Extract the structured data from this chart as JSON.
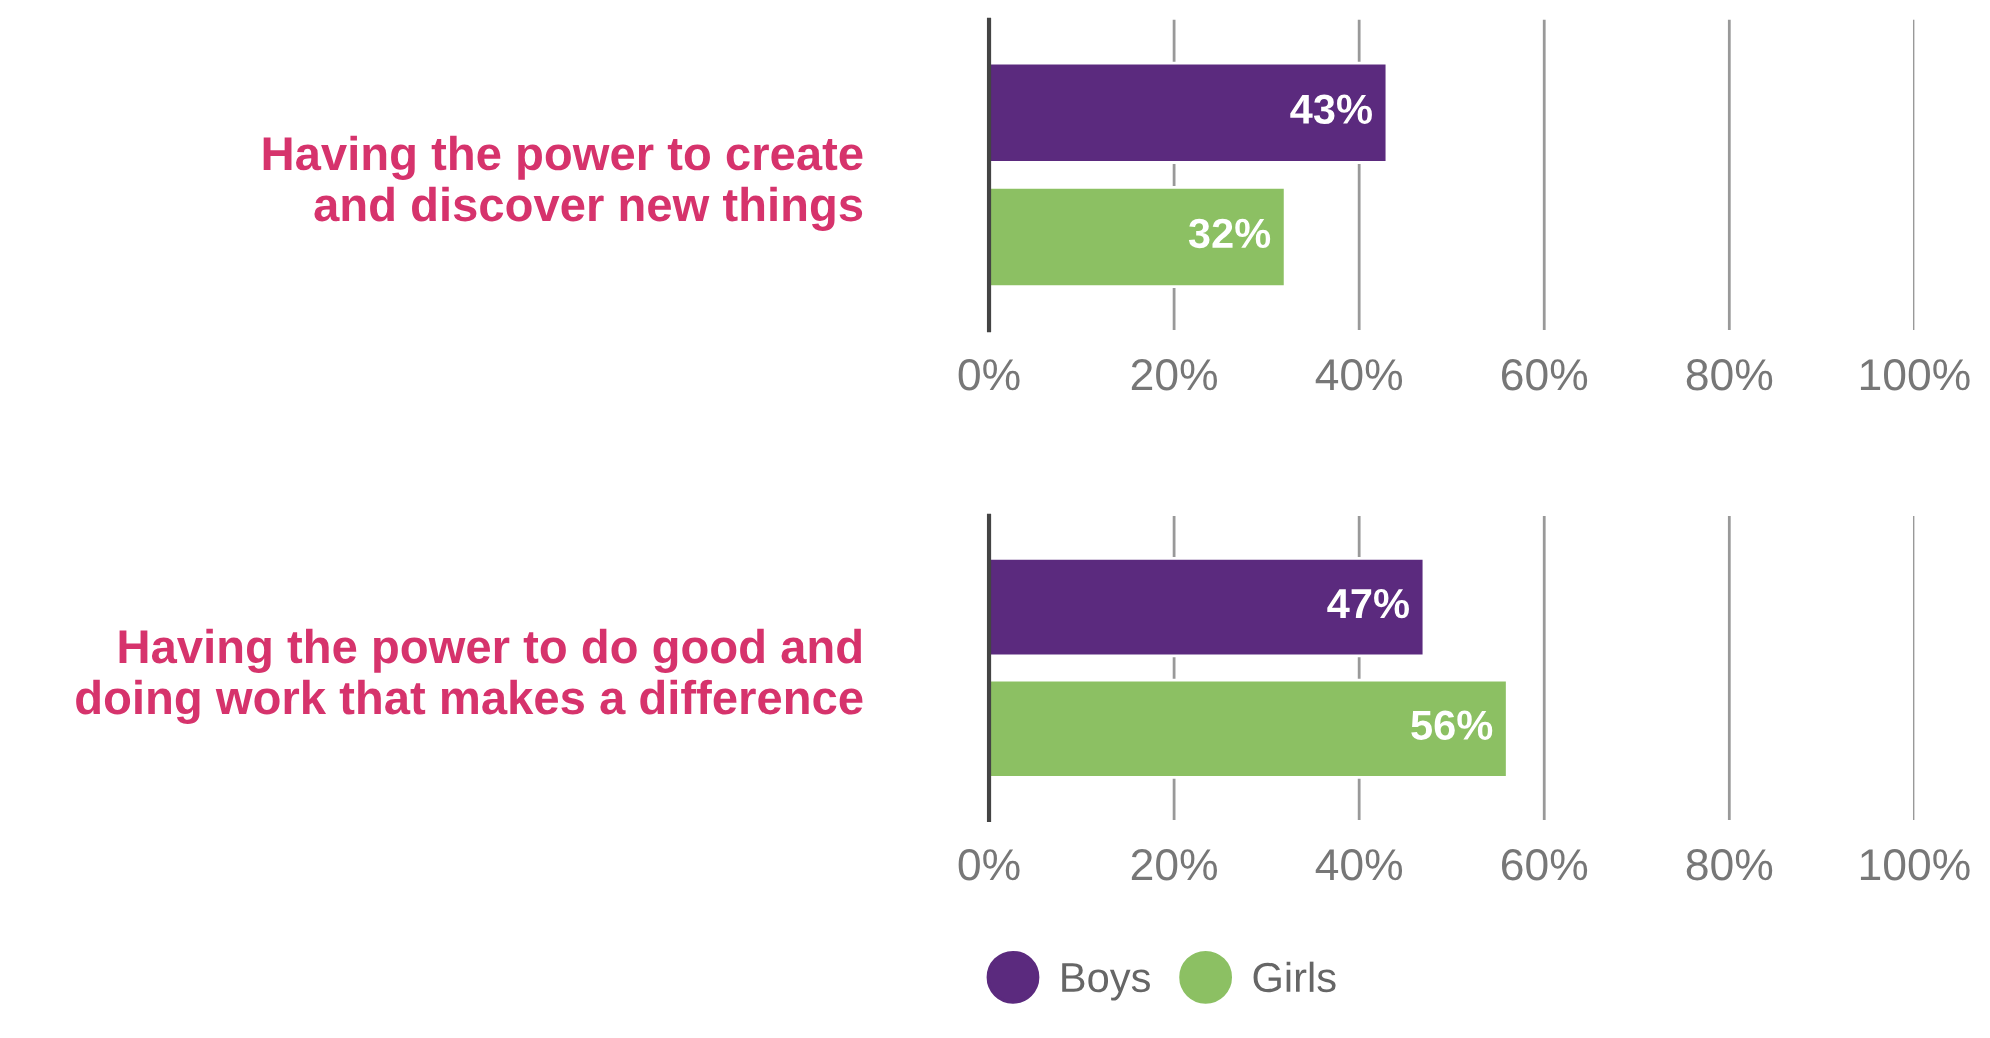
{
  "chart_data": [
    {
      "type": "bar",
      "orientation": "horizontal",
      "categories": [
        "Having the power to create\nand discover new things"
      ],
      "series": [
        {
          "name": "Boys",
          "color": "#5b2a7e",
          "values": [
            43
          ]
        },
        {
          "name": "Girls",
          "color": "#8cc063",
          "values": [
            32
          ]
        }
      ],
      "value_labels": [
        "43%",
        "32%"
      ],
      "xlim": [
        0,
        100
      ],
      "xticks": [
        {
          "value": 0,
          "label": "0%"
        },
        {
          "value": 20,
          "label": "20%"
        },
        {
          "value": 40,
          "label": "40%"
        },
        {
          "value": 60,
          "label": "60%"
        },
        {
          "value": 80,
          "label": "80%"
        },
        {
          "value": 100,
          "label": "100%"
        }
      ],
      "grid": "x",
      "legend": "bottom"
    },
    {
      "type": "bar",
      "orientation": "horizontal",
      "categories": [
        "Having the power to do good and\ndoing work that makes a difference"
      ],
      "series": [
        {
          "color": "#5b2a7e",
          "values": [
            47
          ]
        },
        {
          "color": "#8cc063",
          "values": [
            56
          ]
        }
      ],
      "value_labels": [
        "47%",
        "56%"
      ],
      "xlim": [
        0,
        100
      ],
      "xticks": [
        {
          "value": 0,
          "label": "0%"
        },
        {
          "value": 20,
          "label": "20%"
        },
        {
          "value": 40,
          "label": "40%"
        },
        {
          "value": 60,
          "label": "60%"
        },
        {
          "value": 80,
          "label": "80%"
        },
        {
          "value": 100,
          "label": "100%"
        }
      ],
      "grid": "x"
    }
  ]
}
